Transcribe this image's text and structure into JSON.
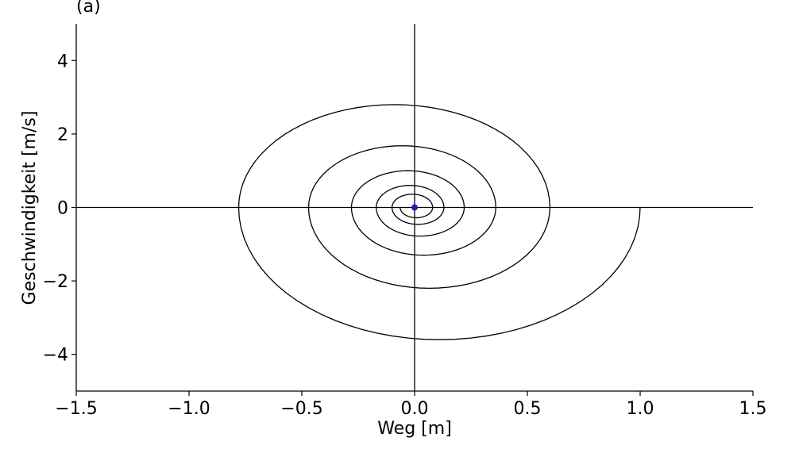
{
  "chart_data": {
    "type": "line",
    "title": "(a)",
    "xlabel": "Weg [m]",
    "ylabel": "Geschwindigkeit [m/s]",
    "xlim": [
      -1.5,
      1.5
    ],
    "ylim": [
      -5,
      5
    ],
    "x_ticks": [
      -1.5,
      -1.0,
      -0.5,
      0.0,
      0.5,
      1.0,
      1.5
    ],
    "x_tick_labels": [
      "−1.5",
      "−1.0",
      "−0.5",
      "0.0",
      "0.5",
      "1.0",
      "1.5"
    ],
    "y_ticks": [
      -4,
      -2,
      0,
      2,
      4
    ],
    "y_tick_labels": [
      "−4",
      "−2",
      "0",
      "2",
      "4"
    ],
    "grid": false,
    "reference_lines": {
      "x": 0,
      "y": 0
    },
    "series": [
      {
        "description": "damped oscillation trajectory in phase plane (spiral)",
        "color": "#000000",
        "initial_state": {
          "x": 1.0,
          "v": 0.0
        },
        "x_extrema_estimated": [
          1.0,
          -0.78,
          0.6,
          -0.47,
          0.36,
          -0.28,
          0.22,
          -0.17,
          0.13,
          -0.1,
          0.08
        ],
        "v_extrema_estimated": [
          -3.6,
          2.8,
          -2.2,
          1.68,
          -1.3,
          1.0,
          -0.78,
          0.6,
          -0.46,
          0.36,
          -0.28
        ]
      }
    ],
    "markers": [
      {
        "label": "equilibrium",
        "x": 0.0,
        "y": 0.0,
        "color": "#1f1fbf"
      }
    ]
  }
}
